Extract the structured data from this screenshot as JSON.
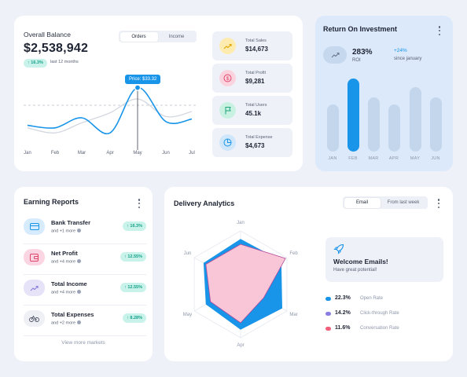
{
  "colors": {
    "accent": "#1894e8",
    "pink": "#f9c6d8",
    "success": "#16a089",
    "purple": "#8a7fe0",
    "red": "#f0607a"
  },
  "balance": {
    "title": "Overall Balance",
    "amount": "$2,538,942",
    "badge": "↑ 16.3%",
    "badge_caption": "last 12 months",
    "tabs": [
      "Orders",
      "Income"
    ],
    "active_tab": "Orders",
    "tooltip": "Price: $33.32",
    "chart_data": {
      "type": "line",
      "x": [
        "Jan",
        "Feb",
        "Mar",
        "Apr",
        "May",
        "Jun",
        "Jul"
      ],
      "series": [
        {
          "values": [
            14,
            12,
            20,
            8,
            44,
            17,
            19
          ]
        },
        {
          "values": [
            12,
            8,
            16,
            24,
            35,
            21,
            25
          ]
        }
      ],
      "annotation": "Price: $33.32",
      "ylim": [
        0,
        50
      ]
    }
  },
  "stats": [
    {
      "label": "Total Sales",
      "value": "$14,673",
      "icon": "trend-up-icon"
    },
    {
      "label": "Total Profit",
      "value": "$9,281",
      "icon": "dollar-icon"
    },
    {
      "label": "Total Users",
      "value": "45.1k",
      "icon": "flag-icon"
    },
    {
      "label": "Total Expense",
      "value": "$4,673",
      "icon": "pie-icon"
    }
  ],
  "roi": {
    "title": "Return On Investment",
    "value": "283%",
    "value_label": "ROI",
    "change": "+24%",
    "change_label": "since january",
    "chart_data": {
      "type": "bar",
      "categories": [
        "JAN",
        "FEB",
        "MAR",
        "APR",
        "MAY",
        "JUN"
      ],
      "values": [
        45,
        70,
        52,
        45,
        62,
        52
      ],
      "highlight": "FEB"
    }
  },
  "earnings": {
    "title": "Earning Reports",
    "items": [
      {
        "name": "Bank Transfer",
        "more": "and +1 more",
        "badge": "↑ 16.3%",
        "icon": "card-icon"
      },
      {
        "name": "Net Profit",
        "more": "and +4 more",
        "badge": "↑ 12.55%",
        "icon": "wallet-icon"
      },
      {
        "name": "Total Income",
        "more": "and +4 more",
        "badge": "↑ 12.55%",
        "icon": "trend-up-icon"
      },
      {
        "name": "Total Expenses",
        "more": "and +2 more",
        "badge": "↑ 8.28%",
        "icon": "bicycle-icon"
      }
    ],
    "view_more": "View more markets"
  },
  "delivery": {
    "title": "Delivery Analytics",
    "tabs": [
      "Email",
      "From last week"
    ],
    "active_tab": "Email",
    "chart_data": {
      "type": "radar",
      "axes": [
        "Jan",
        "Feb",
        "Mar",
        "Apr",
        "May",
        "Jun"
      ],
      "series": [
        {
          "values": [
            85,
            88,
            90,
            85,
            75,
            80
          ],
          "color": "#1894e8"
        },
        {
          "values": [
            75,
            97,
            50,
            72,
            65,
            75
          ],
          "color": "#f9c6d8"
        }
      ],
      "max": 100
    },
    "welcome": {
      "title": "Welcome Emails!",
      "subtitle": "Have great potential!"
    },
    "legend": [
      {
        "value": "22.3%",
        "label": "Open Rate",
        "color": "#1894e8"
      },
      {
        "value": "14.2%",
        "label": "Click-through Rate",
        "color": "#8a7fe0"
      },
      {
        "value": "11.6%",
        "label": "Conversation Rate",
        "color": "#f0607a"
      }
    ]
  }
}
